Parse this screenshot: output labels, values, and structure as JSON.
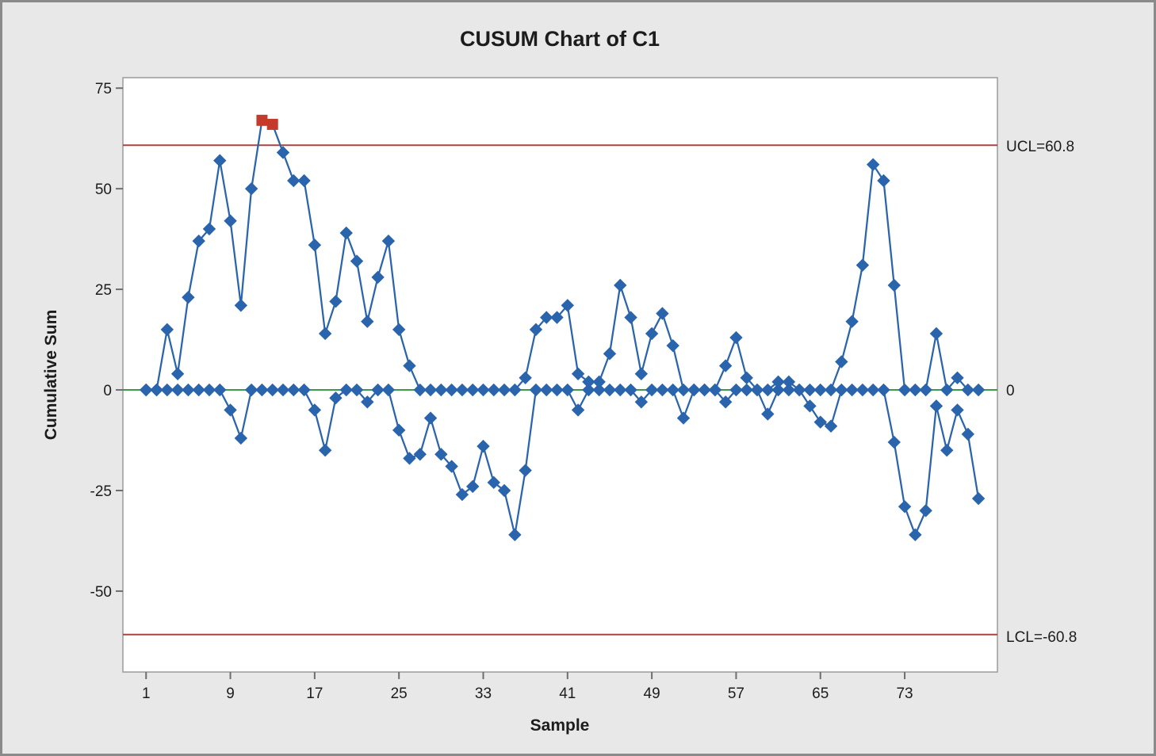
{
  "window": {
    "title": "CUSUM Chart of C1"
  },
  "chart_data": {
    "type": "line",
    "subtype": "cusum-control-chart",
    "title": "CUSUM Chart of C1",
    "xlabel": "Sample",
    "ylabel": "Cumulative Sum",
    "x_ticks": [
      1,
      9,
      17,
      25,
      33,
      41,
      49,
      57,
      65,
      73
    ],
    "y_ticks": [
      75,
      50,
      25,
      0,
      -25,
      -50
    ],
    "xlim": [
      -1.2,
      81.8
    ],
    "ylim": [
      -70.1,
      77.6
    ],
    "n_samples": 80,
    "grid": "off",
    "center_line": {
      "value": 0,
      "label": "0"
    },
    "ucl": {
      "value": 60.8,
      "label": "UCL=60.8"
    },
    "lcl": {
      "value": -60.8,
      "label": "LCL=-60.8"
    },
    "series": [
      {
        "name": "upper-cusum",
        "marker": "diamond",
        "values": [
          0,
          0,
          15,
          4,
          23,
          37,
          40,
          57,
          42,
          21,
          50,
          67,
          66,
          59,
          52,
          52,
          36,
          14,
          22,
          39,
          32,
          17,
          28,
          37,
          15,
          6,
          0,
          0,
          0,
          0,
          0,
          0,
          0,
          0,
          0,
          0,
          3,
          15,
          18,
          18,
          21,
          4,
          2,
          2,
          9,
          26,
          18,
          4,
          14,
          19,
          11,
          0,
          0,
          0,
          0,
          6,
          13,
          3,
          0,
          0,
          2,
          2,
          0,
          0,
          0,
          0,
          7,
          17,
          31,
          56,
          52,
          26,
          0,
          0,
          0,
          14,
          0,
          3,
          0,
          0
        ]
      },
      {
        "name": "lower-cusum",
        "marker": "diamond",
        "values": [
          0,
          0,
          0,
          0,
          0,
          0,
          0,
          0,
          -5,
          -12,
          0,
          0,
          0,
          0,
          0,
          0,
          -5,
          -15,
          -2,
          0,
          0,
          -3,
          0,
          0,
          -10,
          -17,
          -16,
          -7,
          -16,
          -19,
          -26,
          -24,
          -14,
          -23,
          -25,
          -36,
          -20,
          0,
          0,
          0,
          0,
          -5,
          0,
          0,
          0,
          0,
          0,
          -3,
          0,
          0,
          0,
          -7,
          0,
          0,
          0,
          -3,
          0,
          0,
          0,
          -6,
          0,
          0,
          0,
          -4,
          -8,
          -9,
          0,
          0,
          0,
          0,
          0,
          -13,
          -29,
          -36,
          -30,
          -4,
          -15,
          -5,
          -11,
          -27
        ]
      }
    ],
    "out_of_control": [
      {
        "series": "upper-cusum",
        "sample": 12,
        "value": 67
      },
      {
        "series": "upper-cusum",
        "sample": 13,
        "value": 66
      }
    ],
    "colors": {
      "series_blue": "#2A64AC",
      "out_of_control_red": "#C43B2B",
      "limit_line_maroon": "#A94441",
      "center_line_green": "#3B9B47",
      "plot_background": "#FFFFFF",
      "canvas_background": "#E8E8E8",
      "plot_border": "#9B9B9B",
      "tick_color": "#6E6E6E"
    }
  }
}
